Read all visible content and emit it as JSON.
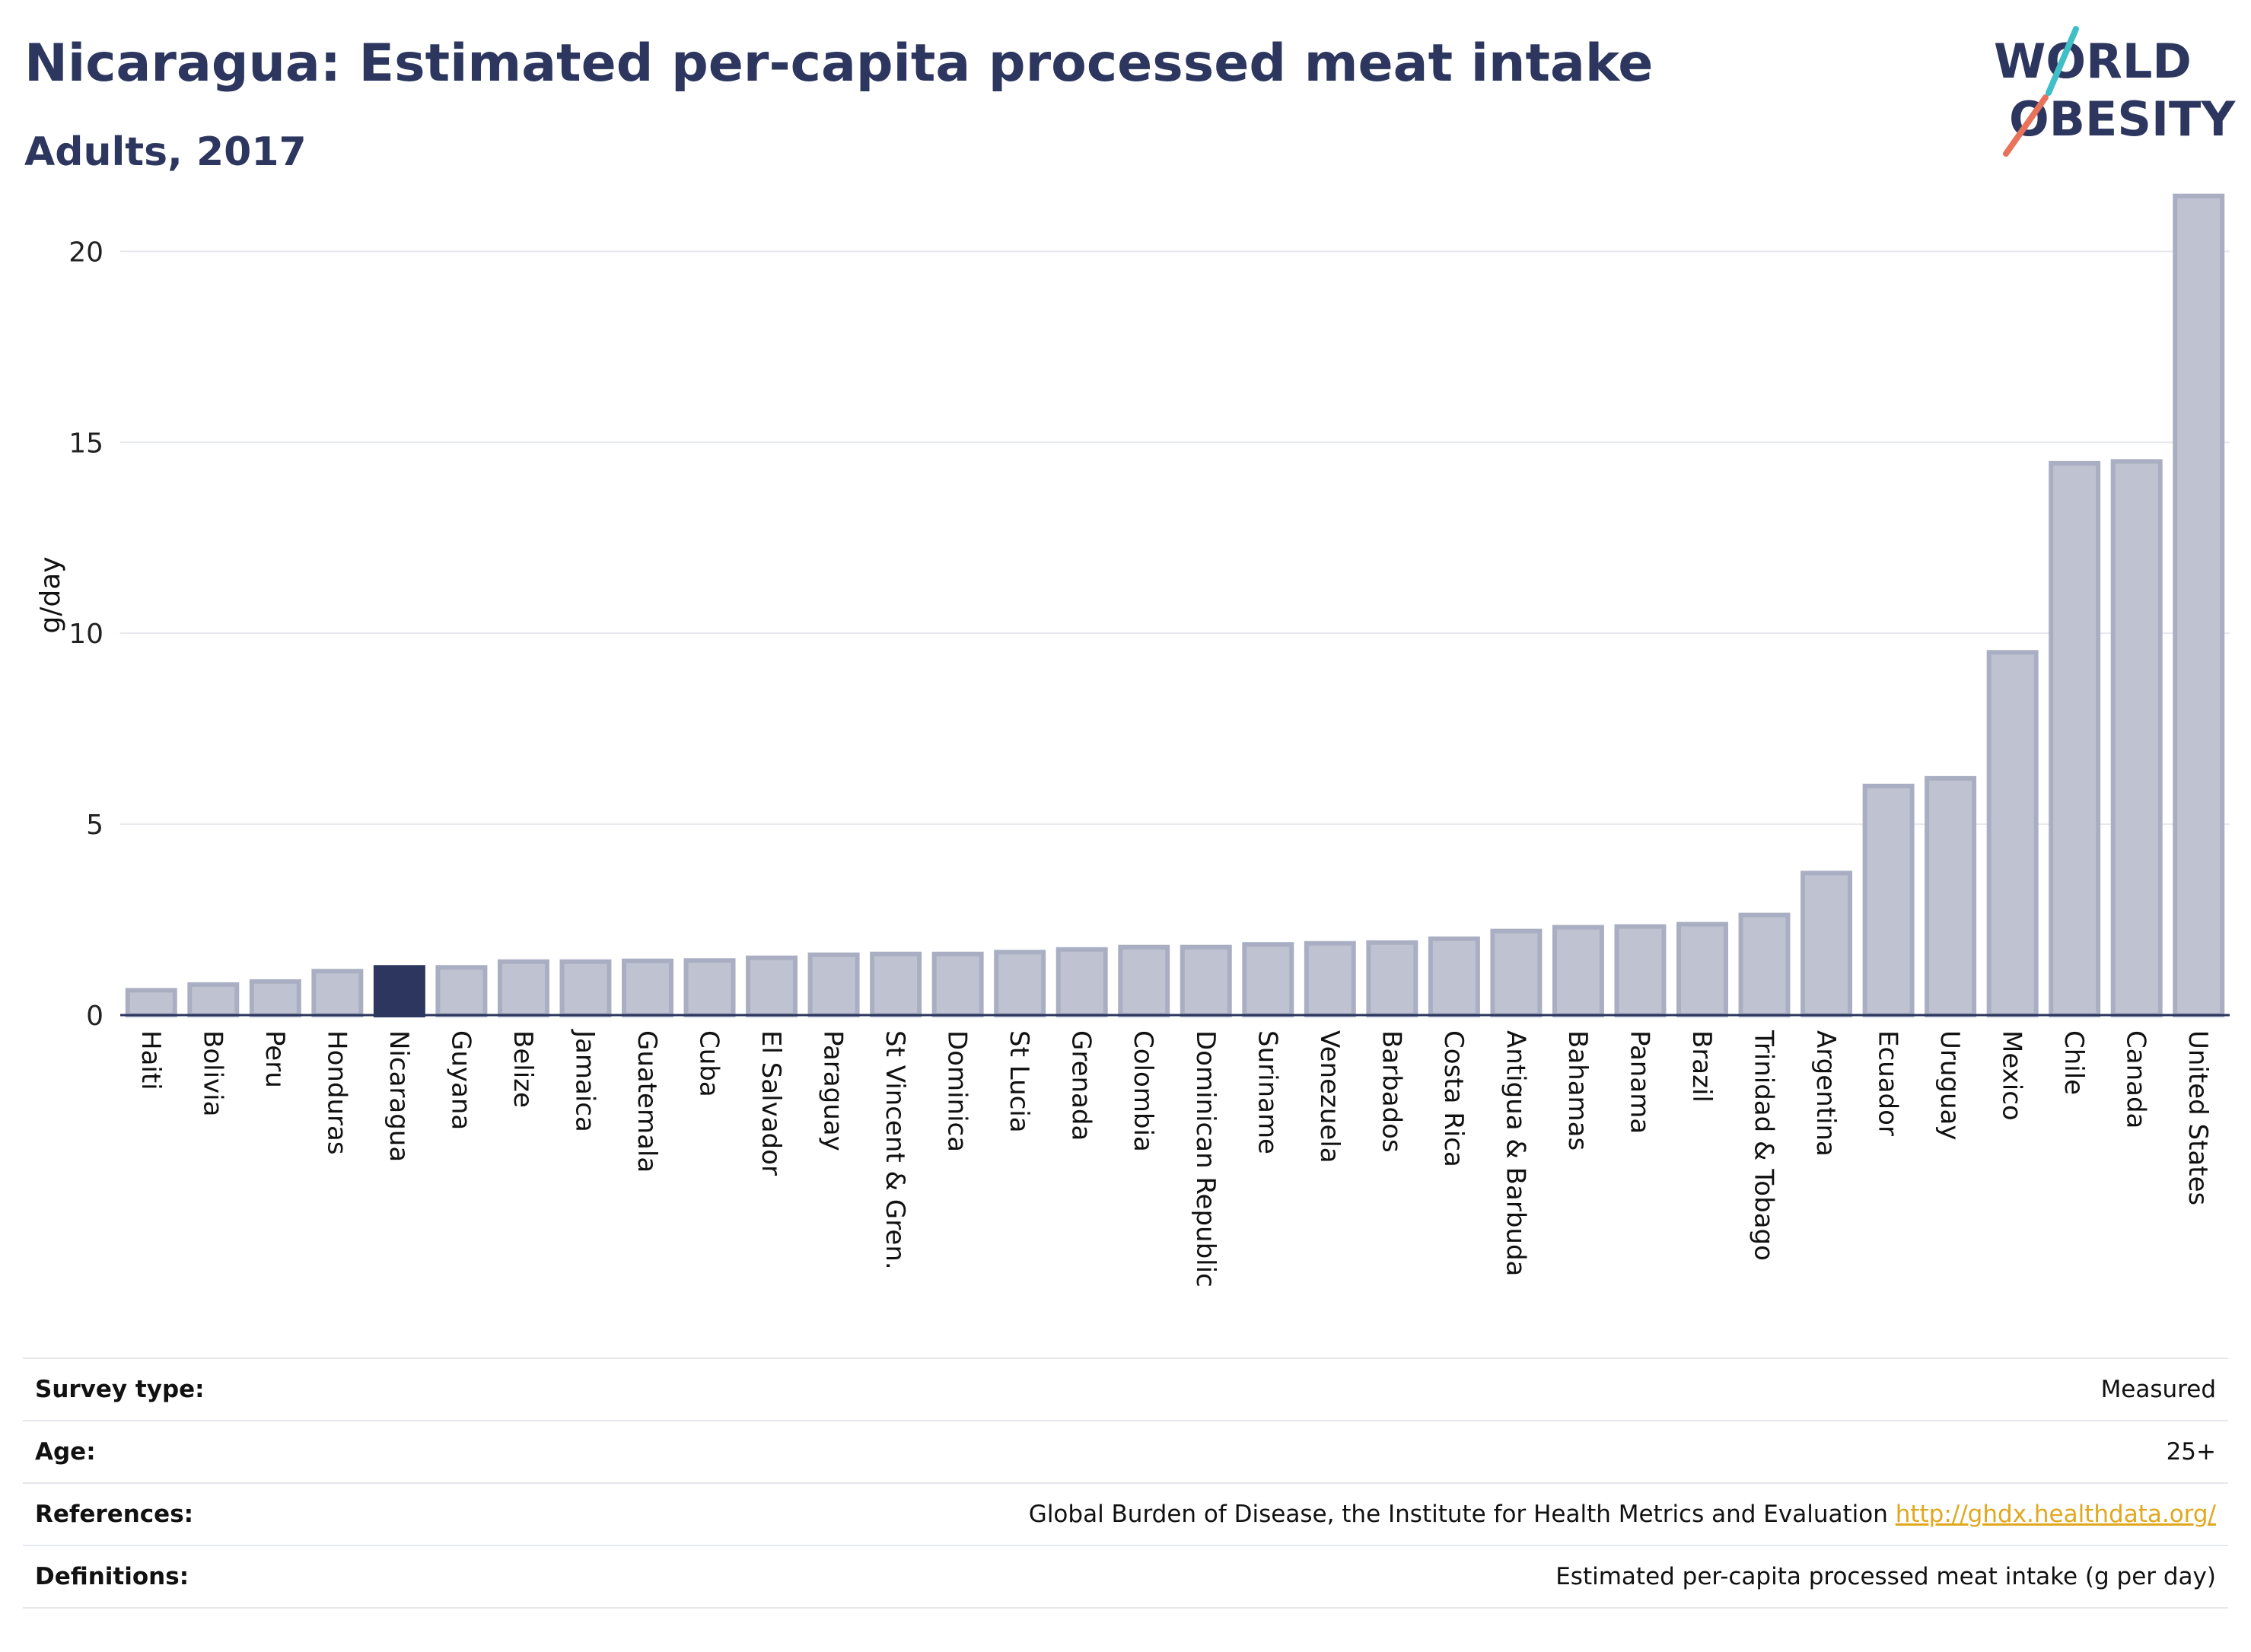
{
  "header": {
    "title": "Nicaragua: Estimated per-capita processed meat intake",
    "subtitle": "Adults, 2017"
  },
  "logo": {
    "line1": "WORLD",
    "line2": "OBESITY"
  },
  "colors": {
    "bar": "#bfc3d1",
    "bar_border": "#a9aec2",
    "highlight": "#2c365e",
    "grid": "#e6e8ee",
    "axis": "#2c365e"
  },
  "chart_data": {
    "type": "bar",
    "ylabel": "g/day",
    "ylim": [
      0,
      22
    ],
    "yticks": [
      0,
      5,
      10,
      15,
      20
    ],
    "grid": true,
    "highlight": "Nicaragua",
    "categories": [
      "Haiti",
      "Bolivia",
      "Peru",
      "Honduras",
      "Nicaragua",
      "Guyana",
      "Belize",
      "Jamaica",
      "Guatemala",
      "Cuba",
      "El Salvador",
      "Paraguay",
      "St Vincent & Gren.",
      "Dominica",
      "St Lucia",
      "Grenada",
      "Colombia",
      "Dominican Republic",
      "Suriname",
      "Venezuela",
      "Barbados",
      "Costa Rica",
      "Antigua & Barbuda",
      "Bahamas",
      "Panama",
      "Brazil",
      "Trinidad & Tobago",
      "Argentina",
      "Ecuador",
      "Uruguay",
      "Mexico",
      "Chile",
      "Canada",
      "United States"
    ],
    "values": [
      0.65,
      0.8,
      0.88,
      1.15,
      1.25,
      1.25,
      1.4,
      1.4,
      1.42,
      1.43,
      1.5,
      1.58,
      1.6,
      1.6,
      1.65,
      1.72,
      1.78,
      1.78,
      1.85,
      1.88,
      1.9,
      2.0,
      2.2,
      2.3,
      2.32,
      2.38,
      2.62,
      3.72,
      6.0,
      6.2,
      9.5,
      14.45,
      14.5,
      21.45
    ]
  },
  "info": {
    "rows": [
      {
        "label": "Survey type:",
        "value": "Measured"
      },
      {
        "label": "Age:",
        "value": "25+"
      },
      {
        "label": "References:",
        "value": "Global Burden of Disease, the Institute for Health Metrics and Evaluation",
        "link": "http://ghdx.healthdata.org/"
      },
      {
        "label": "Definitions:",
        "value": "Estimated per-capita processed meat intake (g per day)"
      }
    ]
  }
}
